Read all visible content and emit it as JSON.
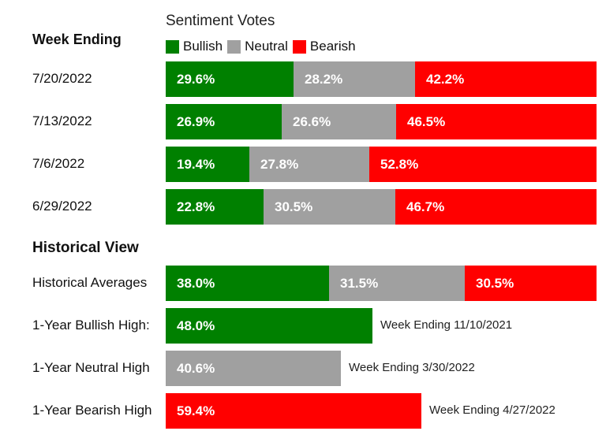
{
  "chart_data": {
    "type": "bar",
    "orientation": "horizontal",
    "stacked": true,
    "legend_title": "Sentiment Votes",
    "legend_placement": "top",
    "week_header": "Week Ending",
    "series": [
      {
        "name": "Bullish",
        "color": "#008000"
      },
      {
        "name": "Neutral",
        "color": "#a0a0a0"
      },
      {
        "name": "Bearish",
        "color": "#ff0000"
      }
    ],
    "weekly": [
      {
        "label": "7/20/2022",
        "values": [
          29.6,
          28.2,
          42.2
        ],
        "texts": [
          "29.6%",
          "28.2%",
          "42.2%"
        ]
      },
      {
        "label": "7/13/2022",
        "values": [
          26.9,
          26.6,
          46.5
        ],
        "texts": [
          "26.9%",
          "26.6%",
          "46.5%"
        ]
      },
      {
        "label": "7/6/2022",
        "values": [
          19.4,
          27.8,
          52.8
        ],
        "texts": [
          "19.4%",
          "27.8%",
          "52.8%"
        ]
      },
      {
        "label": "6/29/2022",
        "values": [
          22.8,
          30.5,
          46.7
        ],
        "texts": [
          "22.8%",
          "30.5%",
          "46.7%"
        ]
      }
    ],
    "historical_title": "Historical View",
    "historical_averages": {
      "label": "Historical Averages",
      "values": [
        38.0,
        31.5,
        30.5
      ],
      "texts": [
        "38.0%",
        "31.5%",
        "30.5%"
      ]
    },
    "highs": [
      {
        "label": "1-Year Bullish High:",
        "value": 48.0,
        "text": "48.0%",
        "series": 0,
        "note": "Week Ending 11/10/2021"
      },
      {
        "label": "1-Year Neutral High",
        "value": 40.6,
        "text": "40.6%",
        "series": 1,
        "note": "Week Ending 3/30/2022"
      },
      {
        "label": "1-Year Bearish High",
        "value": 59.4,
        "text": "59.4%",
        "series": 2,
        "note": "Week Ending 4/27/2022"
      }
    ],
    "xlim": [
      0,
      100
    ]
  }
}
